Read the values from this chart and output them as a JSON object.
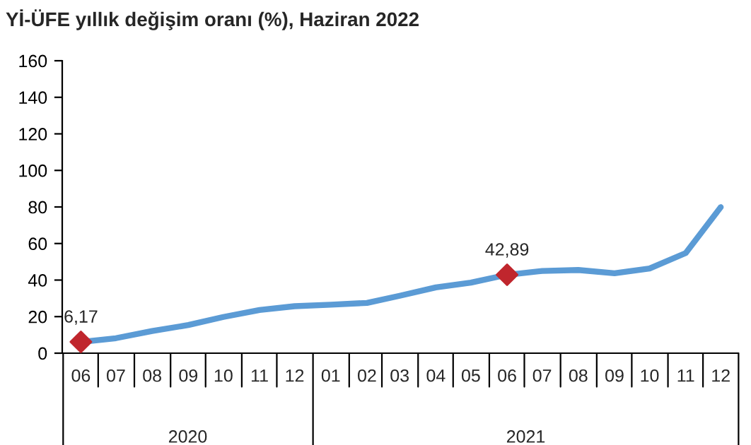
{
  "chart_data": {
    "type": "line",
    "title": "Yİ-ÜFE yıllık değişim oranı (%), Haziran 2022",
    "x": [
      "2020-06",
      "2020-07",
      "2020-08",
      "2020-09",
      "2020-10",
      "2020-11",
      "2020-12",
      "2021-01",
      "2021-02",
      "2021-03",
      "2021-04",
      "2021-05",
      "2021-06",
      "2021-07",
      "2021-08",
      "2021-09",
      "2021-10",
      "2021-11",
      "2021-12"
    ],
    "series": [
      {
        "color": "#5b9bd5",
        "values": [
          6.17,
          8.2,
          12.1,
          15.4,
          19.8,
          23.6,
          25.7,
          26.5,
          27.5,
          31.4,
          36,
          38.6,
          42.89,
          45,
          45.5,
          43.7,
          46.3,
          54.8,
          79.9
        ]
      },
      {
        "type": "scatter",
        "color": "#c0262d",
        "marker": "diamond",
        "x": [
          "2020-06",
          "2021-06"
        ],
        "values": [
          6.17,
          42.89
        ],
        "value_labels": [
          "6,17",
          "42,89"
        ]
      }
    ],
    "xticks": [
      {
        "value": "2020-06",
        "label": "06"
      },
      {
        "value": "2020-07",
        "label": "07"
      },
      {
        "value": "2020-08",
        "label": "08"
      },
      {
        "value": "2020-09",
        "label": "09"
      },
      {
        "value": "2020-10",
        "label": "10"
      },
      {
        "value": "2020-11",
        "label": "11"
      },
      {
        "value": "2020-12",
        "label": "12"
      },
      {
        "value": "2021-01",
        "label": "01"
      },
      {
        "value": "2021-02",
        "label": "02"
      },
      {
        "value": "2021-03",
        "label": "03"
      },
      {
        "value": "2021-04",
        "label": "04"
      },
      {
        "value": "2021-05",
        "label": "05"
      },
      {
        "value": "2021-06",
        "label": "06"
      },
      {
        "value": "2021-07",
        "label": "07"
      },
      {
        "value": "2021-08",
        "label": "08"
      },
      {
        "value": "2021-09",
        "label": "09"
      },
      {
        "value": "2021-10",
        "label": "10"
      },
      {
        "value": "2021-11",
        "label": "11"
      },
      {
        "value": "2021-12",
        "label": "12"
      }
    ],
    "annotations": [
      "2020",
      "2021"
    ],
    "xlim": [
      "2020-05-16",
      "2021-12-16"
    ],
    "ylim": [
      0,
      160
    ],
    "yticks": [
      0,
      20,
      40,
      60,
      80,
      100,
      120,
      140,
      160
    ],
    "grid": false,
    "legend": false
  }
}
